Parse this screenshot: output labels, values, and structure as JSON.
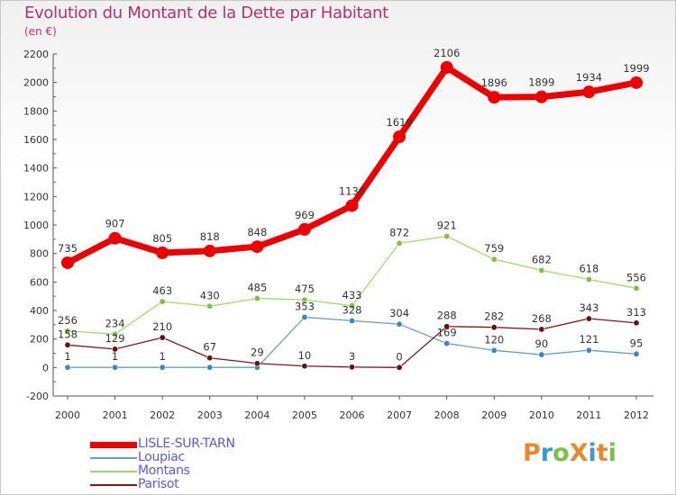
{
  "header": {
    "title": "Evolution du Montant de la Dette par Habitant",
    "subtitle": "(en €)"
  },
  "colors": {
    "title": "#b4316c",
    "legend_text": "#5a5ad4",
    "axis_text": "#333333",
    "grid": "#d9d9d9"
  },
  "brand": {
    "logo_text": "ProXiti",
    "logo_colors": [
      "#e8892b",
      "#3a9ad9",
      "#7bc142",
      "#e8892b",
      "#3a9ad9",
      "#e8892b",
      "#7bc142"
    ]
  },
  "chart_data": {
    "type": "line",
    "title": "Evolution du Montant de la Dette par Habitant",
    "subtitle": "(en €)",
    "x": [
      "2000",
      "2001",
      "2002",
      "2003",
      "2004",
      "2005",
      "2006",
      "2007",
      "2008",
      "2009",
      "2010",
      "2011",
      "2012"
    ],
    "ylim": [
      -200,
      2200
    ],
    "yticks": [
      -200,
      0,
      200,
      400,
      600,
      800,
      1000,
      1200,
      1400,
      1600,
      1800,
      2000,
      2200
    ],
    "grid": false,
    "legend_position": "bottom-left",
    "series": [
      {
        "name": "LISLE-SUR-TARN",
        "color": "#ee0000",
        "point_color": "#ee0000",
        "width": 7,
        "point_radius": 7,
        "values": [
          735,
          907,
          805,
          818,
          848,
          969,
          1136,
          1619,
          2106,
          1896,
          1899,
          1934,
          1999
        ],
        "labels": [
          "735",
          "907",
          "805",
          "818",
          "848",
          "969",
          "1136",
          "1619",
          "2106",
          "1896",
          "1899",
          "1934",
          "1999"
        ]
      },
      {
        "name": "Loupiac",
        "color": "#6a9ec8",
        "point_color": "#3a86c8",
        "width": 1.3,
        "point_radius": 3.2,
        "values": [
          1,
          1,
          1,
          1,
          1,
          353,
          328,
          304,
          169,
          120,
          90,
          121,
          95
        ],
        "labels": [
          "1",
          "1",
          "1",
          "",
          "",
          "353",
          "328",
          "304",
          "169",
          "120",
          "90",
          "121",
          "95"
        ]
      },
      {
        "name": "Montans",
        "color": "#9ddc6a",
        "point_color": "#7bc142",
        "width": 1.3,
        "point_radius": 3.2,
        "values": [
          256,
          234,
          463,
          430,
          485,
          475,
          433,
          872,
          921,
          759,
          682,
          618,
          556
        ],
        "labels": [
          "256",
          "234",
          "463",
          "430",
          "485",
          "475",
          "433",
          "872",
          "921",
          "759",
          "682",
          "618",
          "556"
        ]
      },
      {
        "name": "Parisot",
        "color": "#7a1a1a",
        "point_color": "#6a1010",
        "width": 1.3,
        "point_radius": 3.2,
        "values": [
          158,
          129,
          210,
          67,
          29,
          10,
          3,
          0,
          288,
          282,
          268,
          343,
          313
        ],
        "labels": [
          "158",
          "129",
          "210",
          "67",
          "29",
          "10",
          "3",
          "0",
          "288",
          "282",
          "268",
          "343",
          "313"
        ]
      }
    ]
  }
}
